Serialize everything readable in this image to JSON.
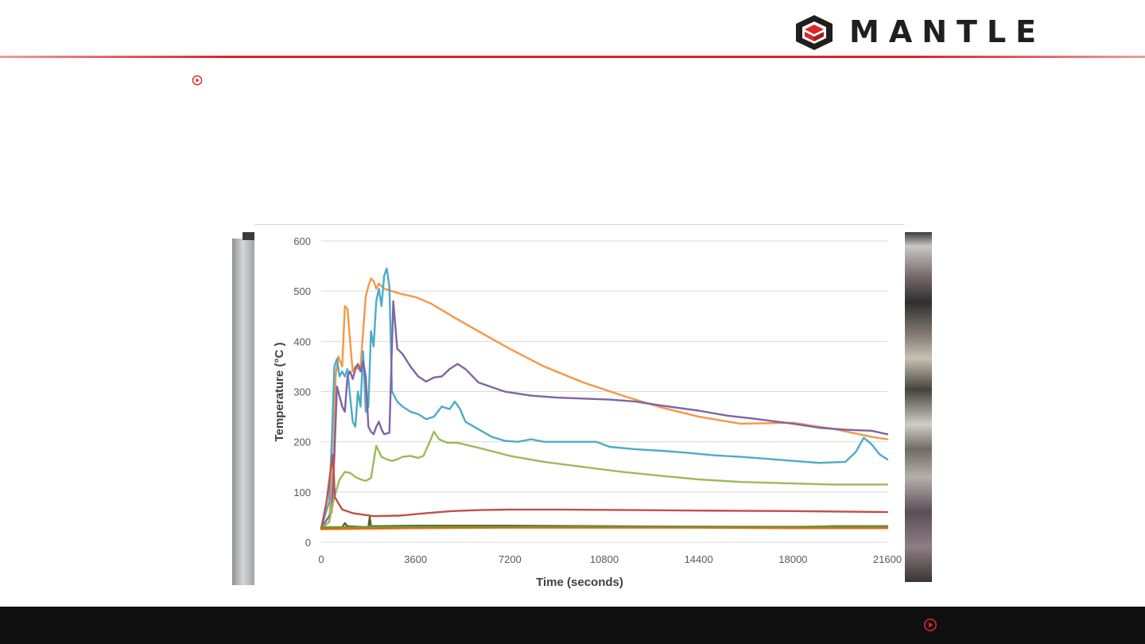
{
  "brand": {
    "name": "MANTLE",
    "accent_color": "#d9262a",
    "logo_icon": "hexagon-cube-logo-icon"
  },
  "slide": {
    "bullet_icon": "circle-arrow-right-icon",
    "footer_icon": "circle-arrow-right-icon"
  },
  "chart_data": {
    "type": "line",
    "title": "",
    "xlabel": "Time (seconds)",
    "ylabel": "Temperature (°C )",
    "xlim": [
      0,
      21600
    ],
    "ylim": [
      0,
      600
    ],
    "xticks": [
      0,
      3600,
      7200,
      10800,
      14400,
      18000,
      21600
    ],
    "yticks": [
      0,
      100,
      200,
      300,
      400,
      500,
      600
    ],
    "grid": true,
    "legend": "none",
    "series": [
      {
        "color": "#f79646",
        "points": [
          [
            0,
            28
          ],
          [
            300,
            40
          ],
          [
            450,
            150
          ],
          [
            550,
            330
          ],
          [
            650,
            370
          ],
          [
            800,
            350
          ],
          [
            900,
            470
          ],
          [
            1000,
            465
          ],
          [
            1100,
            400
          ],
          [
            1200,
            340
          ],
          [
            1300,
            350
          ],
          [
            1400,
            345
          ],
          [
            1500,
            350
          ],
          [
            1600,
            420
          ],
          [
            1700,
            490
          ],
          [
            1800,
            510
          ],
          [
            1900,
            525
          ],
          [
            2000,
            520
          ],
          [
            2100,
            505
          ],
          [
            2200,
            515
          ],
          [
            2400,
            505
          ],
          [
            2700,
            500
          ],
          [
            3000,
            495
          ],
          [
            3600,
            488
          ],
          [
            4200,
            475
          ],
          [
            5000,
            450
          ],
          [
            6000,
            420
          ],
          [
            7200,
            385
          ],
          [
            8500,
            350
          ],
          [
            10000,
            318
          ],
          [
            11500,
            292
          ],
          [
            13000,
            268
          ],
          [
            14400,
            250
          ],
          [
            16000,
            236
          ],
          [
            18000,
            238
          ],
          [
            19500,
            226
          ],
          [
            21000,
            210
          ],
          [
            21600,
            205
          ]
        ]
      },
      {
        "color": "#4bacc6",
        "points": [
          [
            0,
            28
          ],
          [
            300,
            80
          ],
          [
            400,
            200
          ],
          [
            500,
            350
          ],
          [
            600,
            365
          ],
          [
            700,
            330
          ],
          [
            800,
            340
          ],
          [
            900,
            330
          ],
          [
            1000,
            345
          ],
          [
            1100,
            290
          ],
          [
            1200,
            240
          ],
          [
            1300,
            230
          ],
          [
            1400,
            300
          ],
          [
            1500,
            270
          ],
          [
            1600,
            380
          ],
          [
            1700,
            260
          ],
          [
            1800,
            270
          ],
          [
            1900,
            420
          ],
          [
            2000,
            390
          ],
          [
            2100,
            480
          ],
          [
            2200,
            505
          ],
          [
            2300,
            470
          ],
          [
            2400,
            530
          ],
          [
            2500,
            545
          ],
          [
            2600,
            510
          ],
          [
            2700,
            300
          ],
          [
            2900,
            280
          ],
          [
            3100,
            270
          ],
          [
            3400,
            260
          ],
          [
            3700,
            255
          ],
          [
            4000,
            245
          ],
          [
            4300,
            250
          ],
          [
            4600,
            270
          ],
          [
            4900,
            265
          ],
          [
            5100,
            280
          ],
          [
            5300,
            265
          ],
          [
            5500,
            240
          ],
          [
            6000,
            225
          ],
          [
            6500,
            210
          ],
          [
            7000,
            202
          ],
          [
            7500,
            200
          ],
          [
            8000,
            205
          ],
          [
            8500,
            200
          ],
          [
            9500,
            200
          ],
          [
            10500,
            200
          ],
          [
            11000,
            190
          ],
          [
            12000,
            185
          ],
          [
            13000,
            182
          ],
          [
            14000,
            178
          ],
          [
            15000,
            173
          ],
          [
            16000,
            170
          ],
          [
            17000,
            166
          ],
          [
            18000,
            162
          ],
          [
            19000,
            158
          ],
          [
            20000,
            160
          ],
          [
            20400,
            180
          ],
          [
            20700,
            208
          ],
          [
            21000,
            195
          ],
          [
            21300,
            175
          ],
          [
            21600,
            165
          ]
        ]
      },
      {
        "color": "#8064a2",
        "points": [
          [
            0,
            28
          ],
          [
            400,
            60
          ],
          [
            500,
            170
          ],
          [
            600,
            310
          ],
          [
            700,
            290
          ],
          [
            800,
            270
          ],
          [
            900,
            260
          ],
          [
            1000,
            330
          ],
          [
            1100,
            340
          ],
          [
            1200,
            325
          ],
          [
            1300,
            345
          ],
          [
            1400,
            355
          ],
          [
            1500,
            340
          ],
          [
            1600,
            360
          ],
          [
            1700,
            330
          ],
          [
            1800,
            230
          ],
          [
            1900,
            220
          ],
          [
            2000,
            215
          ],
          [
            2100,
            230
          ],
          [
            2200,
            240
          ],
          [
            2300,
            225
          ],
          [
            2400,
            215
          ],
          [
            2600,
            218
          ],
          [
            2750,
            480
          ],
          [
            2900,
            385
          ],
          [
            3100,
            375
          ],
          [
            3400,
            350
          ],
          [
            3700,
            330
          ],
          [
            4000,
            320
          ],
          [
            4300,
            328
          ],
          [
            4600,
            330
          ],
          [
            4900,
            345
          ],
          [
            5200,
            355
          ],
          [
            5500,
            345
          ],
          [
            6000,
            318
          ],
          [
            7000,
            300
          ],
          [
            8000,
            292
          ],
          [
            9000,
            288
          ],
          [
            10000,
            286
          ],
          [
            11000,
            284
          ],
          [
            12000,
            280
          ],
          [
            13000,
            272
          ],
          [
            14400,
            262
          ],
          [
            15500,
            252
          ],
          [
            16500,
            246
          ],
          [
            18000,
            236
          ],
          [
            19000,
            228
          ],
          [
            20000,
            224
          ],
          [
            21000,
            222
          ],
          [
            21600,
            215
          ]
        ]
      },
      {
        "color": "#9bbb59",
        "points": [
          [
            0,
            28
          ],
          [
            300,
            40
          ],
          [
            500,
            90
          ],
          [
            700,
            125
          ],
          [
            900,
            140
          ],
          [
            1100,
            138
          ],
          [
            1300,
            130
          ],
          [
            1500,
            125
          ],
          [
            1700,
            122
          ],
          [
            1900,
            128
          ],
          [
            2100,
            192
          ],
          [
            2300,
            170
          ],
          [
            2500,
            165
          ],
          [
            2700,
            162
          ],
          [
            2900,
            165
          ],
          [
            3100,
            170
          ],
          [
            3400,
            172
          ],
          [
            3700,
            168
          ],
          [
            3900,
            172
          ],
          [
            4100,
            195
          ],
          [
            4300,
            220
          ],
          [
            4500,
            205
          ],
          [
            4800,
            198
          ],
          [
            5200,
            198
          ],
          [
            6000,
            188
          ],
          [
            7200,
            172
          ],
          [
            8500,
            160
          ],
          [
            10000,
            150
          ],
          [
            11500,
            140
          ],
          [
            13000,
            132
          ],
          [
            14400,
            125
          ],
          [
            16000,
            120
          ],
          [
            18000,
            117
          ],
          [
            19500,
            115
          ],
          [
            21000,
            115
          ],
          [
            21600,
            115
          ]
        ]
      },
      {
        "color": "#c0504d",
        "points": [
          [
            0,
            28
          ],
          [
            200,
            80
          ],
          [
            350,
            140
          ],
          [
            450,
            175
          ],
          [
            520,
            90
          ],
          [
            650,
            78
          ],
          [
            800,
            65
          ],
          [
            1200,
            58
          ],
          [
            2000,
            52
          ],
          [
            3000,
            53
          ],
          [
            4000,
            58
          ],
          [
            5000,
            62
          ],
          [
            6000,
            64
          ],
          [
            7200,
            65
          ],
          [
            9000,
            65
          ],
          [
            12000,
            64
          ],
          [
            14400,
            63
          ],
          [
            18000,
            62
          ],
          [
            21600,
            60
          ]
        ]
      },
      {
        "color": "#4f6228",
        "points": [
          [
            0,
            28
          ],
          [
            800,
            30
          ],
          [
            900,
            38
          ],
          [
            1000,
            32
          ],
          [
            1800,
            30
          ],
          [
            1850,
            50
          ],
          [
            1900,
            32
          ],
          [
            3600,
            33
          ],
          [
            7200,
            33
          ],
          [
            10800,
            32
          ],
          [
            14400,
            31
          ],
          [
            18000,
            30
          ],
          [
            19500,
            32
          ],
          [
            21600,
            32
          ]
        ]
      },
      {
        "color": "#e46c0a",
        "points": [
          [
            0,
            26
          ],
          [
            3600,
            28
          ],
          [
            7200,
            29
          ],
          [
            10800,
            29
          ],
          [
            14400,
            29
          ],
          [
            18000,
            28
          ],
          [
            21600,
            28
          ]
        ]
      },
      {
        "color": "#76923c",
        "points": [
          [
            0,
            30
          ],
          [
            3600,
            31
          ],
          [
            7200,
            31
          ],
          [
            10800,
            31
          ],
          [
            14400,
            31
          ],
          [
            18000,
            31
          ],
          [
            21600,
            31
          ]
        ]
      }
    ]
  }
}
